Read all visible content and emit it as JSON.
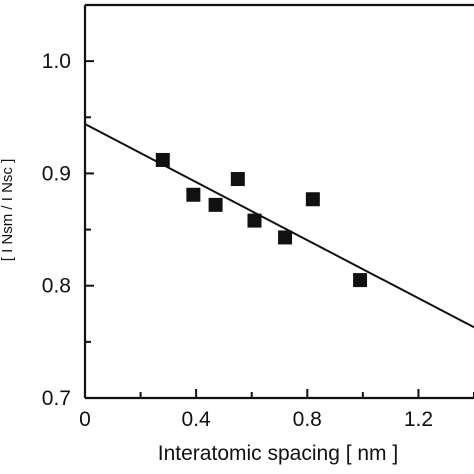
{
  "chart_data": {
    "type": "scatter",
    "title": "",
    "xlabel": "Interatomic spacing [ nm ]",
    "ylabel": "[ I Nsm / I Nsc ]",
    "xlim": [
      0,
      1.4
    ],
    "ylim": [
      0.7,
      1.05
    ],
    "x_ticks": [
      "0",
      "0.4",
      "0.8",
      "1.2"
    ],
    "y_ticks": [
      "0.7",
      "0.8",
      "0.9",
      "1.0"
    ],
    "grid": false,
    "series": [
      {
        "marker": "filled-square",
        "color": "#111111",
        "points": [
          {
            "x": 0.28,
            "y": 0.912
          },
          {
            "x": 0.39,
            "y": 0.881
          },
          {
            "x": 0.47,
            "y": 0.872
          },
          {
            "x": 0.55,
            "y": 0.895
          },
          {
            "x": 0.61,
            "y": 0.858
          },
          {
            "x": 0.72,
            "y": 0.843
          },
          {
            "x": 0.82,
            "y": 0.877
          },
          {
            "x": 0.99,
            "y": 0.805
          }
        ]
      }
    ],
    "fit_line": {
      "color": "#111111",
      "points": [
        {
          "x": 0.0,
          "y": 0.944
        },
        {
          "x": 1.4,
          "y": 0.763
        }
      ]
    }
  }
}
